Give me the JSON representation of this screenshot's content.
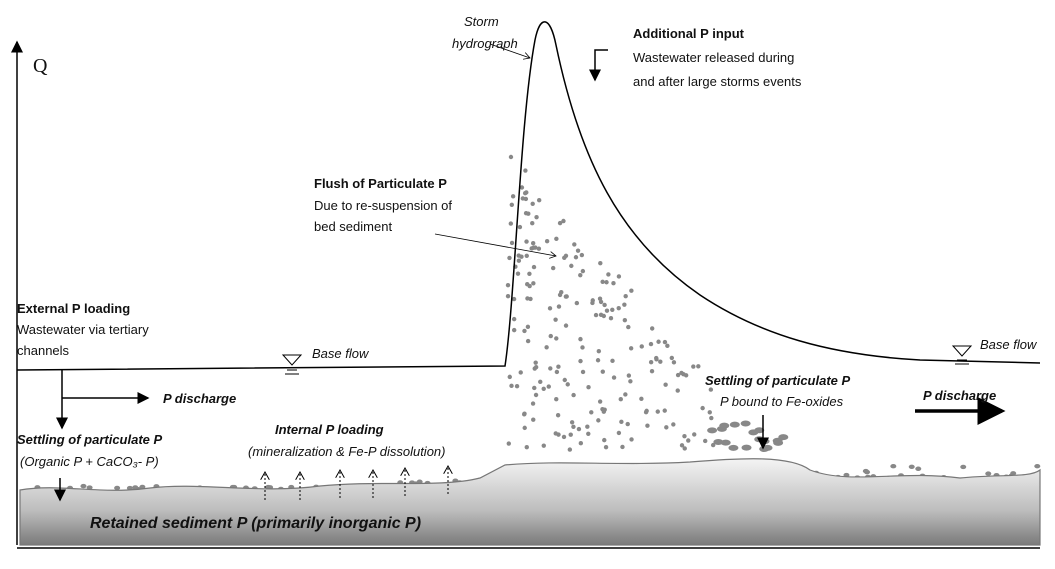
{
  "axis_label": "Q",
  "storm": {
    "lines": [
      "Storm",
      "hydrograph"
    ]
  },
  "additional": {
    "title": "Additional P input",
    "lines": [
      "Wastewater released during",
      "and after large storms events"
    ]
  },
  "flush": {
    "title": "Flush of Particulate P",
    "lines": [
      "Due to re-suspension of",
      "bed sediment"
    ]
  },
  "external": {
    "title": "External P loading",
    "lines": [
      "Wastewater via tertiary",
      "channels"
    ]
  },
  "base_flow_left": "Base flow",
  "base_flow_right": "Base flow",
  "discharge_left": "P discharge",
  "discharge_right": "P discharge",
  "settling_left": {
    "title": "Settling of particulate P",
    "detail": "(Organic P + CaCO₃- P)"
  },
  "internal": {
    "title": "Internal P loading",
    "detail": "(mineralization & Fe-P dissolution)"
  },
  "settling_right": {
    "title": "Settling of particulate P",
    "detail": "P bound to Fe-oxides"
  },
  "sediment": "Retained sediment P (primarily inorganic P)"
}
